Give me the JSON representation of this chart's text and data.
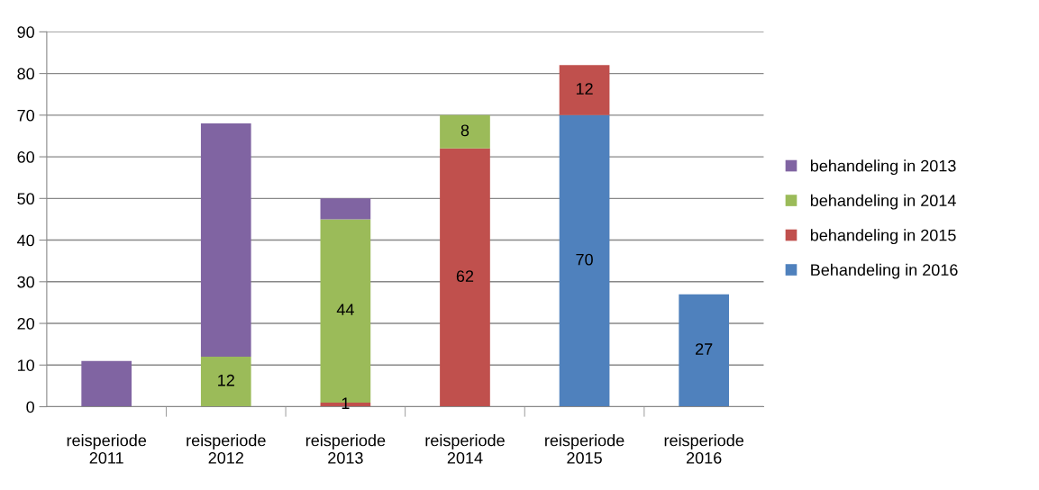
{
  "chart_data": {
    "type": "bar",
    "stacked": true,
    "categories": [
      "reisperiode\n2011",
      "reisperiode\n2012",
      "reisperiode\n2013",
      "reisperiode\n2014",
      "reisperiode\n2015",
      "reisperiode\n2016"
    ],
    "series": [
      {
        "name": "Behandeling in 2016",
        "color": "#4f81bd",
        "values": [
          null,
          null,
          null,
          null,
          70,
          27
        ],
        "value_labels": [
          null,
          null,
          null,
          null,
          "70",
          "27"
        ]
      },
      {
        "name": "behandeling in 2015",
        "color": "#c0504d",
        "values": [
          null,
          null,
          1,
          62,
          12,
          null
        ],
        "value_labels": [
          null,
          null,
          "1",
          "62",
          "12",
          null
        ]
      },
      {
        "name": "behandeling in 2014",
        "color": "#9bbb59",
        "values": [
          null,
          12,
          44,
          8,
          null,
          null
        ],
        "value_labels": [
          null,
          "12",
          "44",
          "8",
          null,
          null
        ]
      },
      {
        "name": "behandeling in 2013",
        "color": "#8064a2",
        "values": [
          11,
          56,
          5,
          null,
          null,
          null
        ]
      }
    ],
    "ylim": [
      0,
      90
    ],
    "yticks": [
      0,
      10,
      20,
      30,
      40,
      50,
      60,
      70,
      80,
      90
    ],
    "grid": "y",
    "legend": "right"
  }
}
